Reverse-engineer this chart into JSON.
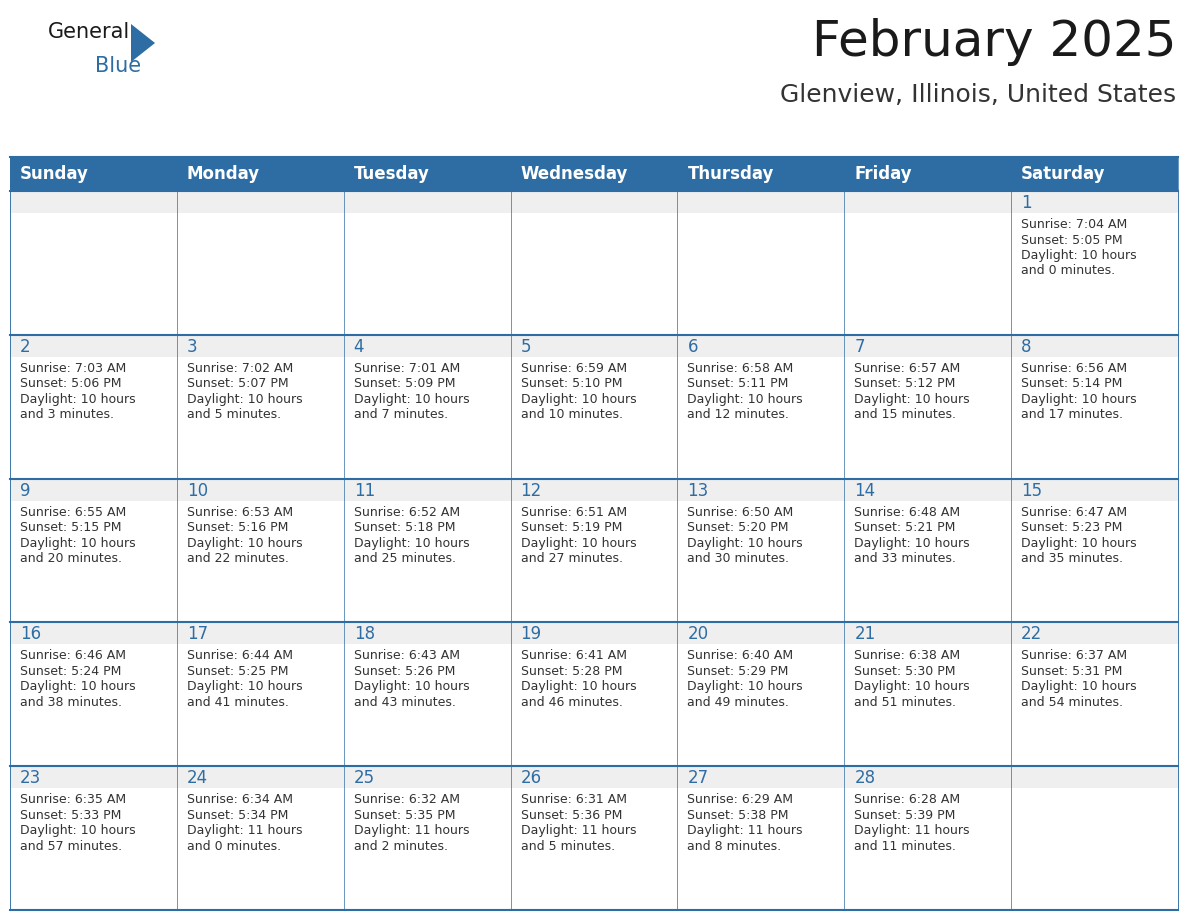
{
  "title": "February 2025",
  "subtitle": "Glenview, Illinois, United States",
  "header_bg": "#2e6da4",
  "header_text_color": "#ffffff",
  "cell_bg_gray": "#efefef",
  "cell_bg_white": "#ffffff",
  "border_color": "#2e6da4",
  "day_num_color": "#2e6da4",
  "text_color": "#333333",
  "days_of_week": [
    "Sunday",
    "Monday",
    "Tuesday",
    "Wednesday",
    "Thursday",
    "Friday",
    "Saturday"
  ],
  "calendar_data": [
    [
      null,
      null,
      null,
      null,
      null,
      null,
      {
        "day": 1,
        "sunrise": "7:04 AM",
        "sunset": "5:05 PM",
        "daylight": "10 hours\nand 0 minutes."
      }
    ],
    [
      {
        "day": 2,
        "sunrise": "7:03 AM",
        "sunset": "5:06 PM",
        "daylight": "10 hours\nand 3 minutes."
      },
      {
        "day": 3,
        "sunrise": "7:02 AM",
        "sunset": "5:07 PM",
        "daylight": "10 hours\nand 5 minutes."
      },
      {
        "day": 4,
        "sunrise": "7:01 AM",
        "sunset": "5:09 PM",
        "daylight": "10 hours\nand 7 minutes."
      },
      {
        "day": 5,
        "sunrise": "6:59 AM",
        "sunset": "5:10 PM",
        "daylight": "10 hours\nand 10 minutes."
      },
      {
        "day": 6,
        "sunrise": "6:58 AM",
        "sunset": "5:11 PM",
        "daylight": "10 hours\nand 12 minutes."
      },
      {
        "day": 7,
        "sunrise": "6:57 AM",
        "sunset": "5:12 PM",
        "daylight": "10 hours\nand 15 minutes."
      },
      {
        "day": 8,
        "sunrise": "6:56 AM",
        "sunset": "5:14 PM",
        "daylight": "10 hours\nand 17 minutes."
      }
    ],
    [
      {
        "day": 9,
        "sunrise": "6:55 AM",
        "sunset": "5:15 PM",
        "daylight": "10 hours\nand 20 minutes."
      },
      {
        "day": 10,
        "sunrise": "6:53 AM",
        "sunset": "5:16 PM",
        "daylight": "10 hours\nand 22 minutes."
      },
      {
        "day": 11,
        "sunrise": "6:52 AM",
        "sunset": "5:18 PM",
        "daylight": "10 hours\nand 25 minutes."
      },
      {
        "day": 12,
        "sunrise": "6:51 AM",
        "sunset": "5:19 PM",
        "daylight": "10 hours\nand 27 minutes."
      },
      {
        "day": 13,
        "sunrise": "6:50 AM",
        "sunset": "5:20 PM",
        "daylight": "10 hours\nand 30 minutes."
      },
      {
        "day": 14,
        "sunrise": "6:48 AM",
        "sunset": "5:21 PM",
        "daylight": "10 hours\nand 33 minutes."
      },
      {
        "day": 15,
        "sunrise": "6:47 AM",
        "sunset": "5:23 PM",
        "daylight": "10 hours\nand 35 minutes."
      }
    ],
    [
      {
        "day": 16,
        "sunrise": "6:46 AM",
        "sunset": "5:24 PM",
        "daylight": "10 hours\nand 38 minutes."
      },
      {
        "day": 17,
        "sunrise": "6:44 AM",
        "sunset": "5:25 PM",
        "daylight": "10 hours\nand 41 minutes."
      },
      {
        "day": 18,
        "sunrise": "6:43 AM",
        "sunset": "5:26 PM",
        "daylight": "10 hours\nand 43 minutes."
      },
      {
        "day": 19,
        "sunrise": "6:41 AM",
        "sunset": "5:28 PM",
        "daylight": "10 hours\nand 46 minutes."
      },
      {
        "day": 20,
        "sunrise": "6:40 AM",
        "sunset": "5:29 PM",
        "daylight": "10 hours\nand 49 minutes."
      },
      {
        "day": 21,
        "sunrise": "6:38 AM",
        "sunset": "5:30 PM",
        "daylight": "10 hours\nand 51 minutes."
      },
      {
        "day": 22,
        "sunrise": "6:37 AM",
        "sunset": "5:31 PM",
        "daylight": "10 hours\nand 54 minutes."
      }
    ],
    [
      {
        "day": 23,
        "sunrise": "6:35 AM",
        "sunset": "5:33 PM",
        "daylight": "10 hours\nand 57 minutes."
      },
      {
        "day": 24,
        "sunrise": "6:34 AM",
        "sunset": "5:34 PM",
        "daylight": "11 hours\nand 0 minutes."
      },
      {
        "day": 25,
        "sunrise": "6:32 AM",
        "sunset": "5:35 PM",
        "daylight": "11 hours\nand 2 minutes."
      },
      {
        "day": 26,
        "sunrise": "6:31 AM",
        "sunset": "5:36 PM",
        "daylight": "11 hours\nand 5 minutes."
      },
      {
        "day": 27,
        "sunrise": "6:29 AM",
        "sunset": "5:38 PM",
        "daylight": "11 hours\nand 8 minutes."
      },
      {
        "day": 28,
        "sunrise": "6:28 AM",
        "sunset": "5:39 PM",
        "daylight": "11 hours\nand 11 minutes."
      },
      null
    ]
  ],
  "logo_triangle_color": "#2e6da4",
  "title_fontsize": 36,
  "subtitle_fontsize": 18,
  "header_fontsize": 12,
  "day_num_fontsize": 12,
  "cell_text_fontsize": 9
}
